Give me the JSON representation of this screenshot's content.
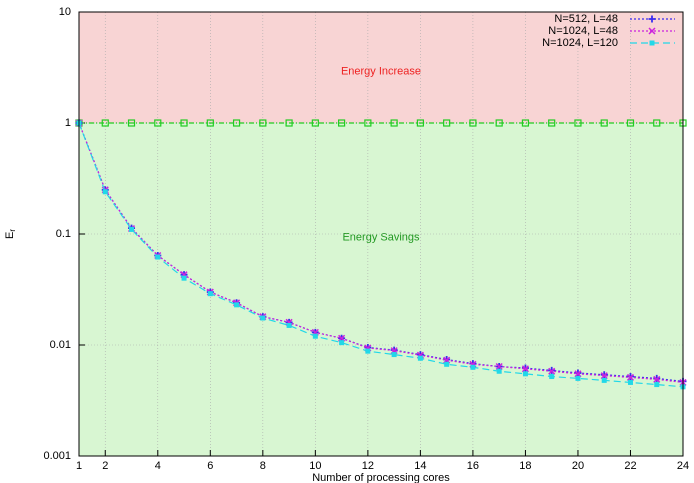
{
  "chart_data": {
    "type": "line",
    "xlabel": "Number of processing cores",
    "ylabel": "E",
    "ylabel_sub": "r",
    "x": [
      1,
      2,
      3,
      4,
      5,
      6,
      7,
      8,
      9,
      10,
      11,
      12,
      13,
      14,
      15,
      16,
      17,
      18,
      19,
      20,
      21,
      22,
      23,
      24
    ],
    "series": [
      {
        "name": "N=512, L=48",
        "color": "#3a2cf0",
        "marker": "plus",
        "dash": "2,2",
        "values": [
          1,
          0.25,
          0.113,
          0.064,
          0.043,
          0.03,
          0.024,
          0.018,
          0.016,
          0.013,
          0.0115,
          0.0095,
          0.009,
          0.0082,
          0.0074,
          0.0068,
          0.0064,
          0.0062,
          0.0059,
          0.0056,
          0.0054,
          0.0052,
          0.005,
          0.0047
        ]
      },
      {
        "name": "N=1024, L=48",
        "color": "#cc22dd",
        "marker": "cross",
        "dash": "2,2",
        "values": [
          1,
          0.25,
          0.112,
          0.064,
          0.043,
          0.03,
          0.024,
          0.018,
          0.016,
          0.013,
          0.0115,
          0.0094,
          0.0089,
          0.0081,
          0.0073,
          0.0067,
          0.0064,
          0.0061,
          0.0058,
          0.0055,
          0.0053,
          0.0051,
          0.0049,
          0.0046
        ]
      },
      {
        "name": "N=1024, L=120",
        "color": "#22d8e8",
        "marker": "square",
        "dash": "7,4",
        "values": [
          1,
          0.24,
          0.11,
          0.062,
          0.04,
          0.029,
          0.023,
          0.0175,
          0.015,
          0.012,
          0.0105,
          0.0088,
          0.0082,
          0.0076,
          0.0067,
          0.0063,
          0.0058,
          0.0055,
          0.0052,
          0.005,
          0.0048,
          0.0046,
          0.0044,
          0.0042
        ]
      }
    ],
    "reference": {
      "value": 1,
      "color": "#22cc22"
    },
    "regions": [
      {
        "label": "Energy Increase",
        "from": 1,
        "to": 10,
        "color": "#f8d4d4",
        "text_color": "#ee2222"
      },
      {
        "label": "Energy Savings",
        "from": 0.001,
        "to": 1,
        "color": "#d8f6d2",
        "text_color": "#229922"
      }
    ],
    "xlim": [
      1,
      24
    ],
    "xticks": [
      1,
      2,
      4,
      6,
      8,
      10,
      12,
      14,
      16,
      18,
      20,
      22,
      24
    ],
    "ylim": [
      0.001,
      10
    ],
    "yticks": [
      0.001,
      0.01,
      0.1,
      1,
      10
    ],
    "log_y": true,
    "grid": true,
    "legend": "top-right"
  }
}
